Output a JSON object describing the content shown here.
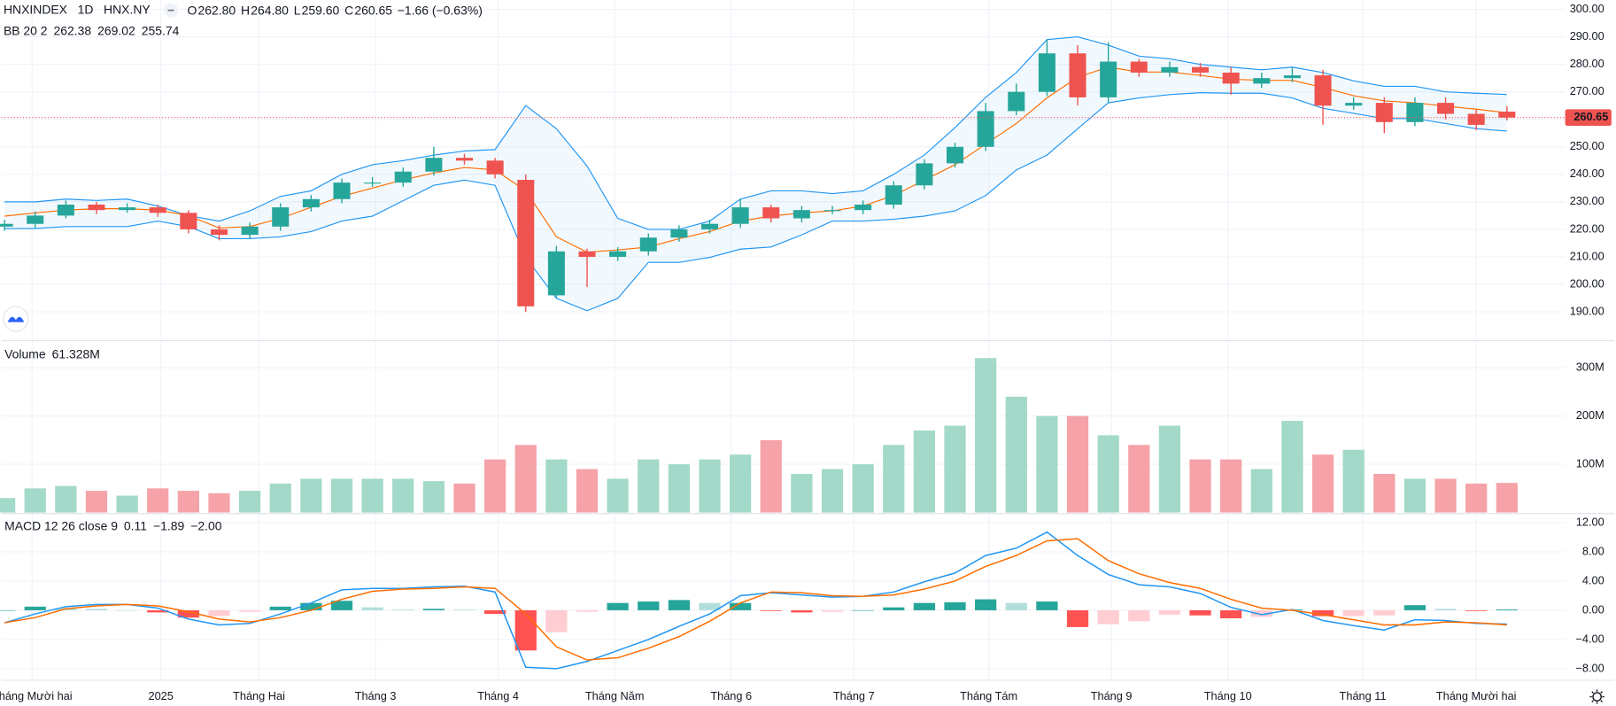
{
  "chart_data": [
    {
      "type": "candlestick",
      "symbol": "HNXINDEX",
      "interval": "1D",
      "exchange": "HNX.NY",
      "ohlc": [
        {
          "label": "O",
          "value": "262.80"
        },
        {
          "label": "H",
          "value": "264.80"
        },
        {
          "label": "L",
          "value": "259.60"
        },
        {
          "label": "C",
          "value": "260.65"
        }
      ],
      "change": "−1.66 (−0.63%)",
      "indicator": "BB 20 2",
      "indicator_values": [
        "262.38",
        "269.02",
        "255.74"
      ],
      "last_price_label": "260.65",
      "up_color": "#26a69a",
      "down_color": "#ef5350",
      "band_color": "#2196f3",
      "basis_color": "#ff6d00",
      "band_fill": "rgba(33,150,243,0.06)",
      "x": [
        0,
        1,
        2,
        3,
        4,
        5,
        6,
        7,
        8,
        9,
        10,
        11,
        12,
        13,
        14,
        15,
        16,
        17,
        18,
        19,
        20,
        21,
        22,
        23,
        24,
        25,
        26,
        27,
        28,
        29,
        30,
        31,
        32,
        33,
        34,
        35,
        36,
        37,
        38,
        39,
        40,
        41,
        42,
        43,
        44,
        45,
        46,
        47,
        48,
        49
      ],
      "open": [
        221,
        222,
        225,
        229,
        227,
        228,
        226,
        220,
        218,
        221,
        228,
        231,
        237,
        237,
        241,
        246,
        245,
        238,
        196,
        212,
        210,
        212,
        217,
        220,
        222,
        228,
        224,
        227,
        227,
        229,
        236,
        244,
        250,
        263,
        270,
        284,
        268,
        281,
        277,
        279,
        277,
        273,
        275,
        276,
        265,
        266,
        259,
        266,
        262,
        262.8
      ],
      "high": [
        223.5,
        226.5,
        230.5,
        230,
        229.5,
        229,
        227,
        221.5,
        222.5,
        229.5,
        232.5,
        238.5,
        239,
        242.5,
        250,
        247.5,
        246,
        240,
        214,
        213,
        213.5,
        218.5,
        221.5,
        223.5,
        231,
        229,
        228.5,
        228.5,
        230.5,
        237.5,
        245.5,
        251.5,
        266,
        273,
        289,
        287,
        288,
        282,
        281,
        280.5,
        279,
        277,
        279,
        278,
        268,
        268,
        268,
        268,
        263.5,
        264.8
      ],
      "low": [
        219.5,
        220.5,
        224,
        225.5,
        226,
        224.5,
        218.5,
        216,
        216.5,
        219.5,
        226.5,
        229.5,
        235.5,
        235.5,
        239.5,
        243.5,
        238.5,
        190,
        195,
        199,
        208.5,
        210.5,
        215.5,
        218.5,
        220.5,
        222.5,
        222.5,
        225.5,
        225.5,
        227.5,
        234.5,
        242.5,
        248.5,
        261.5,
        268.5,
        265,
        266,
        275.5,
        275.5,
        275.5,
        269,
        271.5,
        273.5,
        258,
        263.5,
        255,
        257.5,
        260,
        256,
        259.6
      ],
      "close": [
        222,
        225,
        229,
        227,
        228,
        226,
        220,
        218,
        221,
        228,
        231,
        237,
        237,
        241,
        246,
        245,
        240,
        192,
        212,
        210,
        212,
        217,
        220,
        222,
        228,
        224,
        227,
        227,
        229,
        236,
        244,
        250,
        263,
        270,
        284,
        268,
        281,
        277,
        279,
        277,
        273,
        275,
        276,
        265,
        266,
        259,
        266,
        262,
        258,
        260.65
      ],
      "upper": [
        230,
        230,
        231,
        230.5,
        231,
        228.5,
        225,
        223,
        226.7,
        232,
        234,
        240,
        243.5,
        245,
        247,
        248.5,
        249,
        265,
        256.6,
        243,
        224,
        220,
        220,
        223,
        231,
        234,
        234,
        233,
        234,
        240,
        247,
        257,
        268,
        277,
        289,
        290,
        287,
        283,
        282,
        280,
        279,
        278,
        279,
        277,
        274,
        272,
        272,
        270,
        269.5,
        269.02
      ],
      "basis": [
        224.8,
        226,
        227,
        227.5,
        227.5,
        227,
        225,
        220.5,
        221,
        224,
        228,
        232,
        235,
        238,
        240.5,
        242.5,
        241.6,
        234,
        217.3,
        211.7,
        212.5,
        213.6,
        216.6,
        219.2,
        223,
        224.8,
        226,
        226.7,
        228.5,
        232.3,
        237.9,
        243.5,
        251,
        258.5,
        267.8,
        275.3,
        279,
        277.2,
        277.2,
        276,
        274.6,
        274.2,
        274.2,
        271.6,
        268.6,
        266.7,
        266,
        264.8,
        263.7,
        262.38
      ],
      "lower": [
        220.3,
        220.3,
        221,
        221,
        221,
        223,
        221,
        216.6,
        216.6,
        217.3,
        219.2,
        223,
        224.8,
        230.4,
        236,
        237.9,
        236,
        209.8,
        194.9,
        190.4,
        194.9,
        208,
        208,
        209.8,
        212.8,
        213.6,
        218,
        223,
        223,
        223.7,
        224.8,
        226.7,
        232.3,
        241.6,
        247,
        256.6,
        266,
        267.8,
        269,
        269.7,
        269.5,
        269.5,
        267.8,
        264,
        262.2,
        260.3,
        260.3,
        258.5,
        256.6,
        255.74
      ],
      "xlim": [
        -0.1,
        50.9
      ],
      "ylim": [
        179.9,
        303.4
      ],
      "yticks": [
        {
          "value": 190,
          "label": "190.00"
        },
        {
          "value": 200,
          "label": "200.00"
        },
        {
          "value": 210,
          "label": "210.00"
        },
        {
          "value": 220,
          "label": "220.00"
        },
        {
          "value": 230,
          "label": "230.00"
        },
        {
          "value": 240,
          "label": "240.00"
        },
        {
          "value": 250,
          "label": "250.00"
        },
        {
          "value": 260,
          "label": "260.00"
        },
        {
          "value": 270,
          "label": "270.00"
        },
        {
          "value": 280,
          "label": "280.00"
        },
        {
          "value": 290,
          "label": "290.00"
        },
        {
          "value": 300,
          "label": "300.00"
        }
      ],
      "grid": true
    },
    {
      "type": "volume",
      "label": "Volume",
      "label_value": "61.328M",
      "up_color": "#a3d9c9",
      "down_color": "#f5a3a8",
      "x": [
        0,
        1,
        2,
        3,
        4,
        5,
        6,
        7,
        8,
        9,
        10,
        11,
        12,
        13,
        14,
        15,
        16,
        17,
        18,
        19,
        20,
        21,
        22,
        23,
        24,
        25,
        26,
        27,
        28,
        29,
        30,
        31,
        32,
        33,
        34,
        35,
        36,
        37,
        38,
        39,
        40,
        41,
        42,
        43,
        44,
        45,
        46,
        47,
        48,
        49
      ],
      "values": [
        30000000,
        50000000,
        55000000,
        45000000,
        35000000,
        50000000,
        45000000,
        40000000,
        45000000,
        60000000,
        70000000,
        70000000,
        70000000,
        70000000,
        65000000,
        60000000,
        110000000,
        140000000,
        110000000,
        90000000,
        70000000,
        110000000,
        100000000,
        110000000,
        120000000,
        150000000,
        80000000,
        90000000,
        100000000,
        140000000,
        170000000,
        180000000,
        320000000,
        240000000,
        200000000,
        200000000,
        160000000,
        140000000,
        180000000,
        110000000,
        110000000,
        90000000,
        190000000,
        120000000,
        130000000,
        80000000,
        70000000,
        70000000,
        60000000,
        61328000
      ],
      "xlim": [
        -0.1,
        50.9
      ],
      "ylim": [
        0,
        354000000
      ],
      "yticks": [
        {
          "value": 100000000,
          "label": "100M"
        },
        {
          "value": 200000000,
          "label": "200M"
        },
        {
          "value": 300000000,
          "label": "300M"
        }
      ],
      "grid": true
    },
    {
      "type": "macd",
      "label": "MACD 12 26 close 9",
      "label_values": [
        "0.11",
        "−1.89",
        "−2.00"
      ],
      "macd_color": "#2196f3",
      "signal_color": "#ff6d00",
      "histogram_colors": [
        "#26a69a",
        "#b2dfdb",
        "#ffcdd2",
        "#ff5252"
      ],
      "x": [
        0,
        1,
        2,
        3,
        4,
        5,
        6,
        7,
        8,
        9,
        10,
        11,
        12,
        13,
        14,
        15,
        16,
        17,
        18,
        19,
        20,
        21,
        22,
        23,
        24,
        25,
        26,
        27,
        28,
        29,
        30,
        31,
        32,
        33,
        34,
        35,
        36,
        37,
        38,
        39,
        40,
        41,
        42,
        43,
        44,
        45,
        46,
        47,
        48,
        49
      ],
      "histogram": [
        0,
        0.5,
        0.3,
        0.2,
        0,
        -0.3,
        -1.0,
        -0.8,
        -0.2,
        0.5,
        1.0,
        1.3,
        0.4,
        0.1,
        0.2,
        0.1,
        -0.5,
        -5.5,
        -3.0,
        -0.2,
        1.0,
        1.2,
        1.4,
        1.0,
        1.0,
        -0.1,
        -0.3,
        -0.2,
        0,
        0.4,
        1.0,
        1.1,
        1.5,
        1.0,
        1.2,
        -2.3,
        -1.9,
        -1.5,
        -0.6,
        -0.7,
        -1.1,
        -0.9,
        0.1,
        -0.8,
        -0.8,
        -0.7,
        0.7,
        0.2,
        -0.1,
        0.11
      ],
      "macd": [
        -1.7,
        -0.5,
        0.5,
        0.8,
        0.8,
        0.3,
        -1.2,
        -2.0,
        -1.8,
        -0.5,
        1.0,
        2.8,
        3.0,
        3.0,
        3.2,
        3.3,
        2.5,
        -7.8,
        -8.0,
        -7.0,
        -5.5,
        -4.0,
        -2.2,
        -0.5,
        2.0,
        2.4,
        2.1,
        1.8,
        1.9,
        2.5,
        3.9,
        5.1,
        7.5,
        8.5,
        10.7,
        7.5,
        4.9,
        3.5,
        3.2,
        2.3,
        0.4,
        -0.6,
        0.1,
        -1.4,
        -2.1,
        -2.7,
        -1.3,
        -1.4,
        -1.8,
        -1.89
      ],
      "signal": [
        -1.7,
        -1.0,
        0.2,
        0.6,
        0.8,
        0.6,
        -0.2,
        -1.2,
        -1.6,
        -1.0,
        0.0,
        1.5,
        2.6,
        2.9,
        3.0,
        3.2,
        3.0,
        -0.5,
        -5.0,
        -6.8,
        -6.5,
        -5.2,
        -3.6,
        -1.5,
        1.0,
        2.5,
        2.4,
        2.0,
        1.9,
        2.1,
        2.9,
        4.0,
        6.0,
        7.5,
        9.5,
        9.8,
        6.8,
        5.0,
        3.8,
        3.0,
        1.5,
        0.3,
        0.0,
        -0.6,
        -1.3,
        -2.0,
        -2.0,
        -1.6,
        -1.7,
        -2.0
      ],
      "xlim": [
        -0.1,
        50.9
      ],
      "ylim": [
        -9.44,
        13.1
      ],
      "yticks": [
        {
          "value": -8,
          "label": "−8.00"
        },
        {
          "value": -4,
          "label": "−4.00"
        },
        {
          "value": 0,
          "label": "0.00"
        },
        {
          "value": 4,
          "label": "4.00"
        },
        {
          "value": 8,
          "label": "8.00"
        },
        {
          "value": 12,
          "label": "12.00"
        }
      ],
      "xticks": [
        {
          "value": 0.9,
          "label": "Tháng Mười hai"
        },
        {
          "value": 5.1,
          "label": "2025"
        },
        {
          "value": 8.3,
          "label": "Tháng Hai"
        },
        {
          "value": 12.1,
          "label": "Tháng 3"
        },
        {
          "value": 16.1,
          "label": "Tháng 4"
        },
        {
          "value": 19.9,
          "label": "Tháng Năm"
        },
        {
          "value": 23.7,
          "label": "Tháng 6"
        },
        {
          "value": 27.7,
          "label": "Tháng 7"
        },
        {
          "value": 32.1,
          "label": "Tháng Tám"
        },
        {
          "value": 36.1,
          "label": "Tháng 9"
        },
        {
          "value": 39.9,
          "label": "Tháng 10"
        },
        {
          "value": 44.3,
          "label": "Tháng 11"
        },
        {
          "value": 48.0,
          "label": "Tháng Mười hai"
        }
      ],
      "grid": true
    }
  ]
}
